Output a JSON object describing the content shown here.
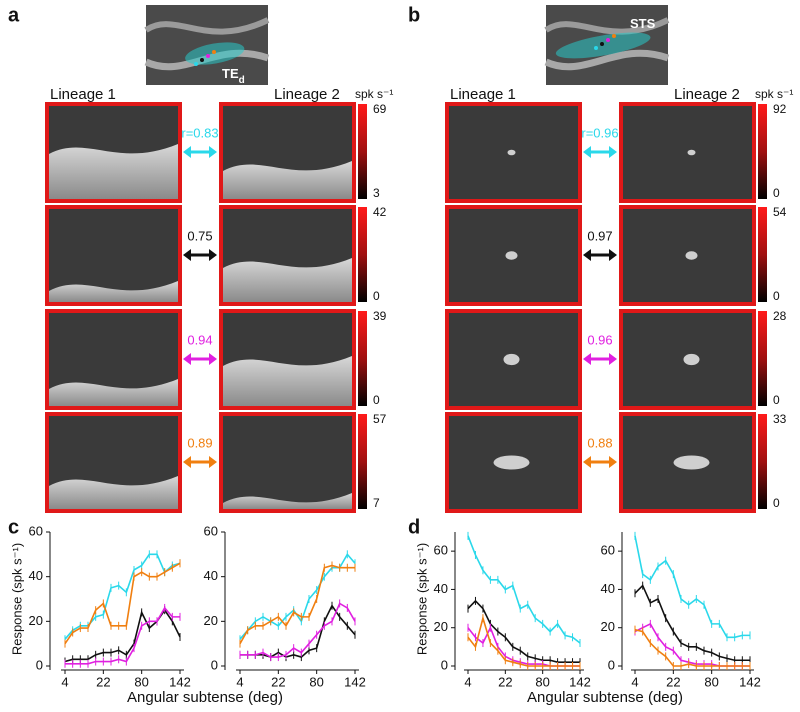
{
  "panels": [
    {
      "label": "a",
      "region": {
        "name": "TE",
        "subscript": "d"
      },
      "lineage_labels": [
        "Lineage 1",
        "Lineage 2"
      ],
      "unit": "spk s⁻¹",
      "rows": [
        {
          "correlation": "r=0.83",
          "color": "#2ad8ea",
          "colorbar": [
            69,
            3
          ]
        },
        {
          "correlation": "0.75",
          "color": "#111111",
          "colorbar": [
            42,
            0
          ]
        },
        {
          "correlation": "0.94",
          "color": "#e020e0",
          "colorbar": [
            39,
            0
          ]
        },
        {
          "correlation": "0.89",
          "color": "#f07f10",
          "colorbar": [
            57,
            7
          ]
        }
      ]
    },
    {
      "label": "b",
      "region": {
        "name": "STS"
      },
      "lineage_labels": [
        "Lineage 1",
        "Lineage 2"
      ],
      "unit": "spk s⁻¹",
      "rows": [
        {
          "correlation": "r=0.96",
          "color": "#2ad8ea",
          "colorbar": [
            92,
            0
          ]
        },
        {
          "correlation": "0.97",
          "color": "#111111",
          "colorbar": [
            54,
            0
          ]
        },
        {
          "correlation": "0.96",
          "color": "#e020e0",
          "colorbar": [
            28,
            0
          ]
        },
        {
          "correlation": "0.88",
          "color": "#f07f10",
          "colorbar": [
            33,
            0
          ]
        }
      ]
    }
  ],
  "chart_panel_labels": [
    "c",
    "d"
  ],
  "chart_data": [
    {
      "type": "line",
      "xlabel": "Angular subtense (deg)",
      "ylabel": "Response (spk s⁻¹)",
      "categories": [
        "4",
        null,
        null,
        null,
        null,
        "22",
        null,
        null,
        null,
        null,
        "80",
        null,
        null,
        null,
        null,
        "142"
      ],
      "ylim": [
        0,
        60
      ],
      "yticks": [
        0,
        20,
        40,
        60
      ],
      "series": [
        {
          "color": "#2ad8ea",
          "values": [
            12,
            16,
            18,
            18,
            22,
            23,
            35,
            36,
            33,
            43,
            45,
            50,
            50,
            42,
            45,
            46
          ]
        },
        {
          "color": "#f07f10",
          "values": [
            10,
            15,
            17,
            17,
            25,
            28,
            18,
            18,
            18,
            40,
            42,
            40,
            40,
            42,
            44,
            46
          ]
        },
        {
          "color": "#111111",
          "values": [
            2,
            3,
            3,
            3,
            5,
            6,
            6,
            7,
            5,
            10,
            24,
            17,
            20,
            25,
            20,
            13
          ]
        },
        {
          "color": "#e020e0",
          "values": [
            1,
            1,
            1,
            1,
            2,
            2,
            2,
            3,
            2,
            8,
            18,
            20,
            20,
            26,
            22,
            22
          ]
        }
      ]
    },
    {
      "type": "line",
      "categories": [
        "4",
        null,
        null,
        null,
        null,
        "22",
        null,
        null,
        null,
        null,
        "80",
        null,
        null,
        null,
        null,
        "142"
      ],
      "ylim": [
        0,
        60
      ],
      "yticks": [
        0,
        20,
        40,
        60
      ],
      "series": [
        {
          "color": "#2ad8ea",
          "values": [
            12,
            16,
            20,
            22,
            20,
            18,
            22,
            25,
            20,
            30,
            34,
            40,
            44,
            44,
            50,
            46
          ]
        },
        {
          "color": "#f07f10",
          "values": [
            10,
            16,
            18,
            18,
            20,
            22,
            18,
            24,
            22,
            22,
            30,
            44,
            45,
            44,
            44,
            44
          ]
        },
        {
          "color": "#111111",
          "values": [
            5,
            5,
            5,
            5,
            4,
            6,
            4,
            5,
            4,
            7,
            8,
            20,
            27,
            22,
            18,
            14
          ]
        },
        {
          "color": "#e020e0",
          "values": [
            5,
            5,
            5,
            6,
            4,
            4,
            5,
            8,
            6,
            10,
            14,
            18,
            20,
            28,
            26,
            20
          ]
        }
      ]
    },
    {
      "type": "line",
      "xlabel": "Angular subtense (deg)",
      "ylabel": "Response (spk s⁻¹)",
      "categories": [
        "4",
        null,
        null,
        null,
        null,
        "22",
        null,
        null,
        null,
        null,
        "80",
        null,
        null,
        null,
        null,
        "142"
      ],
      "ylim": [
        0,
        70
      ],
      "yticks": [
        0,
        20,
        40,
        60
      ],
      "series": [
        {
          "color": "#2ad8ea",
          "values": [
            68,
            58,
            50,
            45,
            45,
            40,
            42,
            30,
            32,
            25,
            22,
            18,
            22,
            16,
            15,
            12
          ]
        },
        {
          "color": "#111111",
          "values": [
            30,
            34,
            30,
            22,
            18,
            15,
            10,
            8,
            5,
            4,
            3,
            3,
            2,
            2,
            2,
            2
          ]
        },
        {
          "color": "#e020e0",
          "values": [
            20,
            15,
            12,
            20,
            10,
            5,
            3,
            2,
            1,
            1,
            1,
            0,
            0,
            0,
            0,
            0
          ]
        },
        {
          "color": "#f07f10",
          "values": [
            15,
            10,
            25,
            12,
            8,
            3,
            2,
            1,
            0,
            0,
            0,
            0,
            0,
            0,
            0,
            0
          ]
        }
      ]
    },
    {
      "type": "line",
      "categories": [
        "4",
        null,
        null,
        null,
        null,
        "22",
        null,
        null,
        null,
        null,
        "80",
        null,
        null,
        null,
        null,
        "142"
      ],
      "ylim": [
        0,
        70
      ],
      "yticks": [
        0,
        20,
        40,
        60
      ],
      "series": [
        {
          "color": "#2ad8ea",
          "values": [
            68,
            48,
            45,
            52,
            55,
            48,
            35,
            32,
            35,
            32,
            22,
            22,
            15,
            15,
            16,
            16
          ]
        },
        {
          "color": "#111111",
          "values": [
            38,
            42,
            33,
            35,
            25,
            18,
            12,
            10,
            10,
            8,
            7,
            5,
            4,
            3,
            3,
            3
          ]
        },
        {
          "color": "#e020e0",
          "values": [
            18,
            20,
            22,
            15,
            10,
            8,
            3,
            2,
            1,
            1,
            1,
            0,
            0,
            0,
            0,
            0
          ]
        },
        {
          "color": "#f07f10",
          "values": [
            19,
            18,
            12,
            8,
            5,
            0,
            0,
            1,
            0,
            0,
            0,
            0,
            0,
            0,
            0,
            0
          ]
        }
      ]
    }
  ]
}
